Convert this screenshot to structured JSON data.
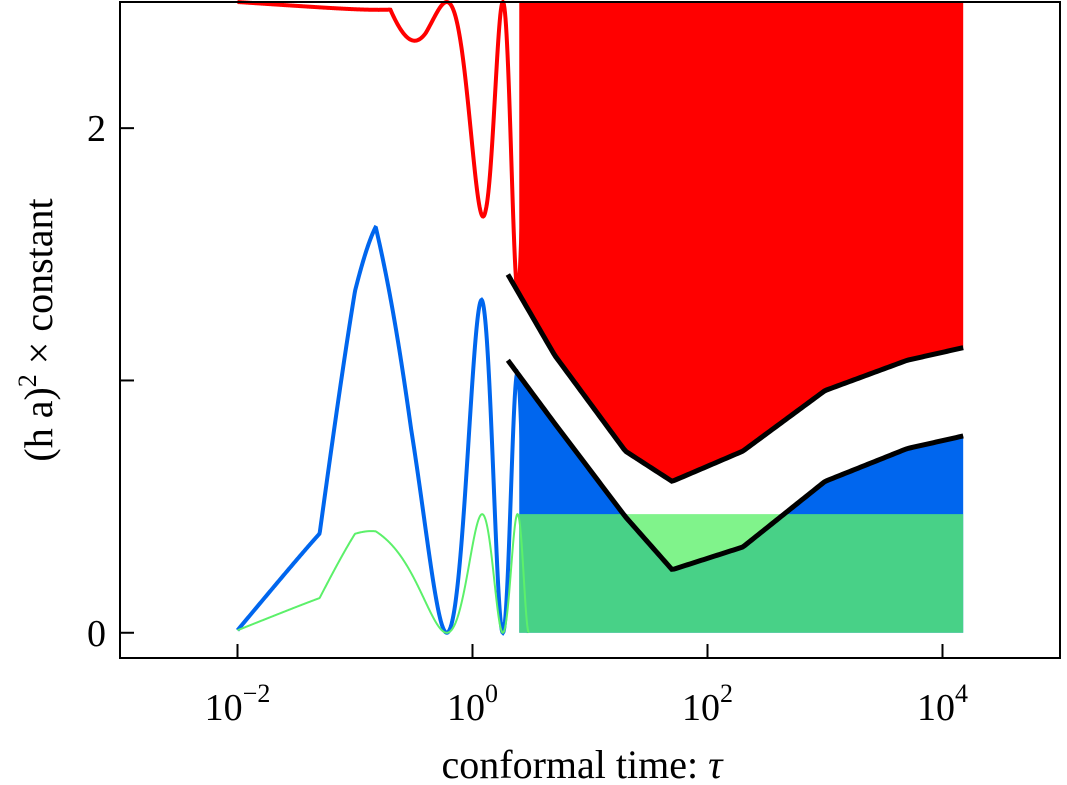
{
  "chart_data": {
    "type": "line",
    "xlabel": "conformal time: ",
    "xlabel_symbol": "τ",
    "ylabel_prefix": "(h a)",
    "ylabel_exponent": "2",
    "ylabel_suffix": " × constant",
    "x_scale": "log",
    "xlim": [
      0.001,
      100000
    ],
    "ylim": [
      -0.1,
      2.5
    ],
    "x_ticks": [
      {
        "value": 0.01,
        "base": "10",
        "exp": "−2"
      },
      {
        "value": 1,
        "base": "10",
        "exp": "0"
      },
      {
        "value": 100,
        "base": "10",
        "exp": "2"
      },
      {
        "value": 10000,
        "base": "10",
        "exp": "4"
      }
    ],
    "y_ticks": [
      {
        "value": 0,
        "label": "0"
      },
      {
        "value": 1,
        "label": ""
      },
      {
        "value": 2,
        "label": "2"
      }
    ],
    "grid": false,
    "legend": "none",
    "series": [
      {
        "color": "#ff0000",
        "style": "oscillating",
        "baseline": 2.5,
        "envelope_lower": [
          [
            0.01,
            2.5
          ],
          [
            0.2,
            2.46
          ],
          [
            0.4,
            2.02
          ],
          [
            0.7,
            1.82
          ],
          [
            1.3,
            1.63
          ],
          [
            2,
            1.42
          ],
          [
            5,
            1.1
          ],
          [
            20,
            0.72
          ],
          [
            50,
            0.6
          ],
          [
            200,
            0.72
          ],
          [
            1000,
            0.96
          ],
          [
            5000,
            1.08
          ],
          [
            15000,
            1.13
          ]
        ]
      },
      {
        "color": "#0066ee",
        "style": "oscillating",
        "baseline": 0,
        "envelope_upper": [
          [
            0.01,
            0.01
          ],
          [
            0.05,
            0.4
          ],
          [
            0.1,
            1.45
          ],
          [
            0.15,
            1.88
          ],
          [
            0.3,
            1.6
          ],
          [
            0.5,
            1.58
          ],
          [
            0.8,
            1.42
          ],
          [
            1.2,
            1.32
          ],
          [
            2,
            1.08
          ],
          [
            5,
            0.83
          ],
          [
            20,
            0.46
          ],
          [
            50,
            0.25
          ],
          [
            200,
            0.34
          ],
          [
            1000,
            0.6
          ],
          [
            5000,
            0.73
          ],
          [
            15000,
            0.78
          ]
        ]
      },
      {
        "color": "#5cf06a",
        "style": "oscillating",
        "baseline": 0,
        "envelope_upper": [
          [
            0.01,
            0.01
          ],
          [
            0.05,
            0.14
          ],
          [
            0.1,
            0.42
          ],
          [
            0.15,
            0.47
          ],
          [
            0.3,
            0.47
          ],
          [
            1,
            0.47
          ],
          [
            15000,
            0.47
          ]
        ]
      },
      {
        "color": "#000000",
        "style": "envelope",
        "points": [
          [
            2,
            1.42
          ],
          [
            5,
            1.1
          ],
          [
            20,
            0.72
          ],
          [
            50,
            0.6
          ],
          [
            200,
            0.72
          ],
          [
            1000,
            0.96
          ],
          [
            5000,
            1.08
          ],
          [
            15000,
            1.13
          ]
        ]
      },
      {
        "color": "#000000",
        "style": "envelope",
        "points": [
          [
            2,
            1.08
          ],
          [
            5,
            0.83
          ],
          [
            20,
            0.46
          ],
          [
            50,
            0.25
          ],
          [
            200,
            0.34
          ],
          [
            1000,
            0.6
          ],
          [
            5000,
            0.73
          ],
          [
            15000,
            0.78
          ]
        ]
      }
    ]
  }
}
